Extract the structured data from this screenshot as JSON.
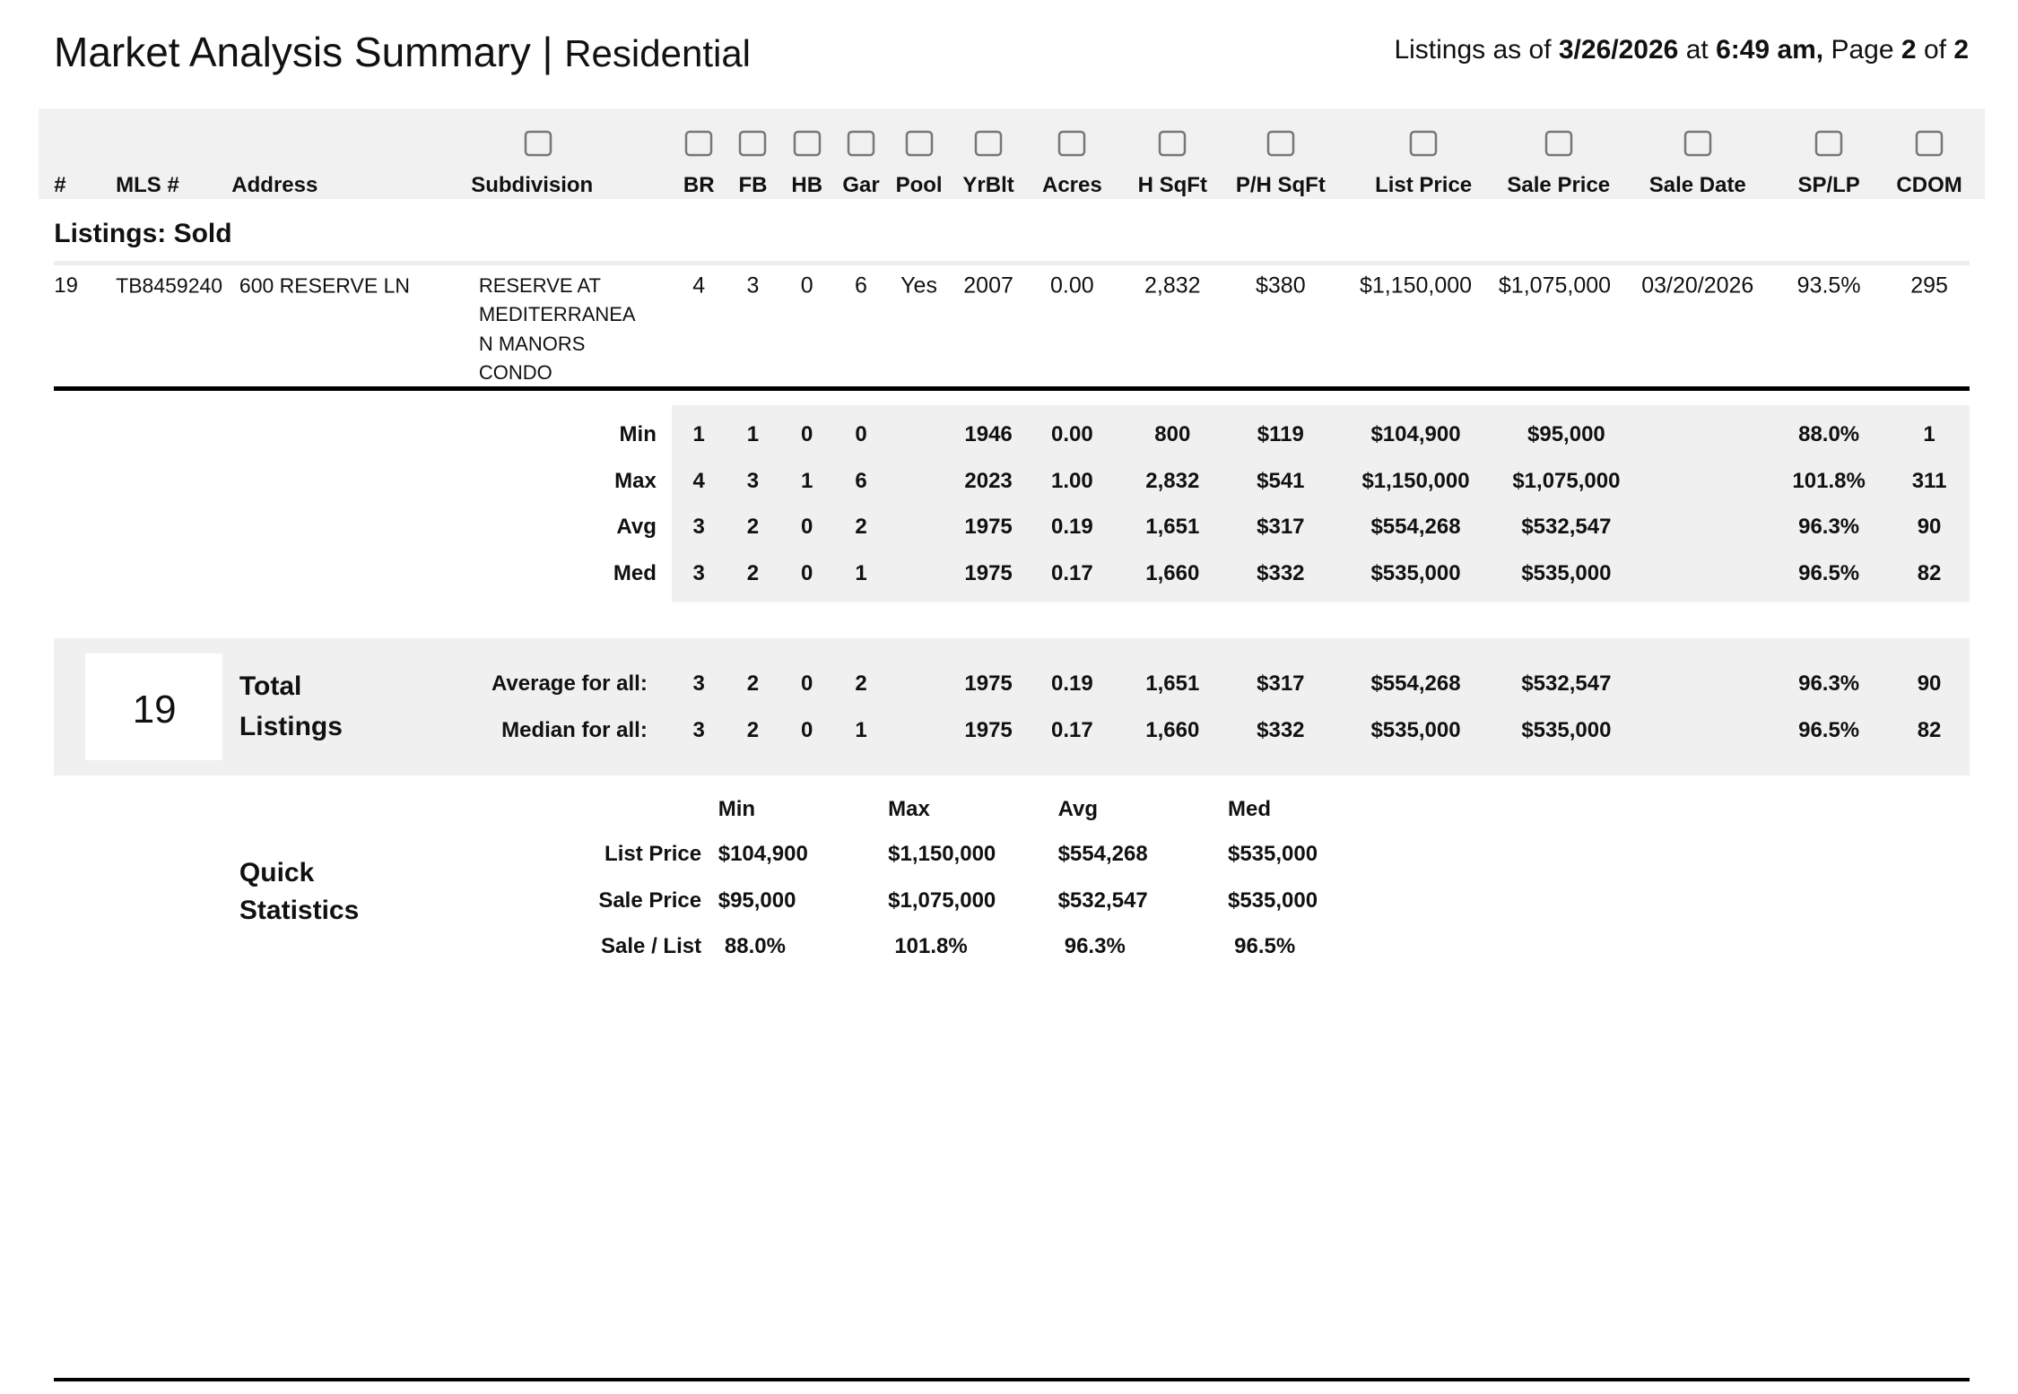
{
  "header": {
    "title": "Market Analysis Summary",
    "separator": "|",
    "subtitle": "Residential",
    "info": {
      "prefix": "Listings as of",
      "date": "3/26/2026",
      "at": "at",
      "time": "6:49 am,",
      "page_word": "Page",
      "page": "2",
      "of": "of",
      "pages": "2"
    }
  },
  "table": {
    "columns": [
      "#",
      "MLS #",
      "Address",
      "Subdivision",
      "BR",
      "FB",
      "HB",
      "Gar",
      "Pool",
      "YrBlt",
      "Acres",
      "H SqFt",
      "P/H SqFt",
      "List Price",
      "Sale Price",
      "Sale Date",
      "SP/LP",
      "CDOM"
    ],
    "section": "Listings: Sold",
    "rows": [
      [
        "19",
        "TB8459240",
        "600 RESERVE LN",
        [
          "RESERVE AT",
          "MEDITERRANEA",
          "N MANORS",
          "CONDO"
        ],
        "4",
        "3",
        "0",
        "6",
        "Yes",
        "2007",
        "0.00",
        "2,832",
        "$380",
        "$1,150,000",
        "$1,075,000",
        "03/20/2026",
        "93.5%",
        "295"
      ]
    ],
    "stats": [
      {
        "label": "Min",
        "values": [
          "1",
          "1",
          "0",
          "0",
          null,
          "1946",
          "0.00",
          "800",
          "$119",
          "$104,900",
          "$95,000",
          null,
          "88.0%",
          "1"
        ]
      },
      {
        "label": "Max",
        "values": [
          "4",
          "3",
          "1",
          "6",
          null,
          "2023",
          "1.00",
          "2,832",
          "$541",
          "$1,150,000",
          "$1,075,000",
          null,
          "101.8%",
          "311"
        ]
      },
      {
        "label": "Avg",
        "values": [
          "3",
          "2",
          "0",
          "2",
          null,
          "1975",
          "0.19",
          "1,651",
          "$317",
          "$554,268",
          "$532,547",
          null,
          "96.3%",
          "90"
        ]
      },
      {
        "label": "Med",
        "values": [
          "3",
          "2",
          "0",
          "1",
          null,
          "1975",
          "0.17",
          "1,660",
          "$332",
          "$535,000",
          "$535,000",
          null,
          "96.5%",
          "82"
        ]
      }
    ]
  },
  "totals": {
    "count": "19",
    "label": [
      "Total",
      "Listings"
    ],
    "rows": [
      {
        "label": "Average for all:",
        "values": [
          "3",
          "2",
          "0",
          "2",
          null,
          "1975",
          "0.19",
          "1,651",
          "$317",
          "$554,268",
          "$532,547",
          null,
          "96.3%",
          "90"
        ]
      },
      {
        "label": "Median for all:",
        "values": [
          "3",
          "2",
          "0",
          "1",
          null,
          "1975",
          "0.17",
          "1,660",
          "$332",
          "$535,000",
          "$535,000",
          null,
          "96.5%",
          "82"
        ]
      }
    ]
  },
  "quick_stats": {
    "title": [
      "Quick",
      "Statistics"
    ],
    "columns": [
      "Min",
      "Max",
      "Avg",
      "Med"
    ],
    "rows": [
      {
        "label": "List Price",
        "values": [
          "$104,900",
          "$1,150,000",
          "$554,268",
          "$535,000"
        ]
      },
      {
        "label": "Sale Price",
        "values": [
          "$95,000",
          "$1,075,000",
          "$532,547",
          "$535,000"
        ]
      },
      {
        "label": "Sale / List",
        "values": [
          "88.0%",
          "101.8%",
          "96.3%",
          "96.5%"
        ]
      }
    ]
  }
}
